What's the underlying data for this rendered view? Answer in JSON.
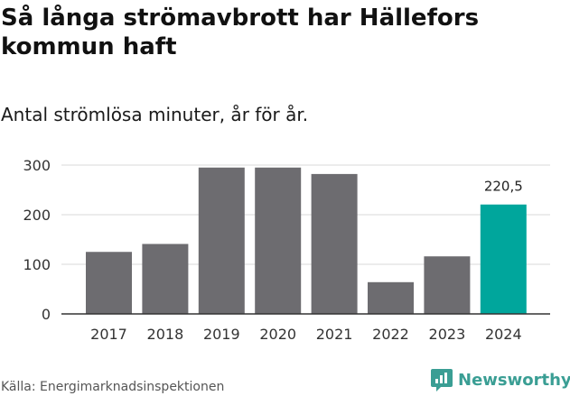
{
  "title": "Så långa strömavbrott har Hällefors kommun haft",
  "subtitle": "Antal strömlösa minuter, år för år.",
  "source": "Källa: Energimarknadsinspektionen",
  "brand": "Newsworthy",
  "colors": {
    "bar": "#6d6c70",
    "highlight": "#00a69c",
    "grid": "#d9d9d9",
    "axis": "#333333",
    "brand": "#3a9e94"
  },
  "chart_data": {
    "type": "bar",
    "categories": [
      "2017",
      "2018",
      "2019",
      "2020",
      "2021",
      "2022",
      "2023",
      "2024"
    ],
    "values": [
      125,
      141,
      295,
      295,
      282,
      64,
      116,
      220.5
    ],
    "highlight_index": 7,
    "data_labels": [
      {
        "index": 7,
        "text": "220,5"
      }
    ],
    "yticks": [
      0,
      100,
      200,
      300
    ],
    "ylim": [
      0,
      300
    ],
    "grid": true,
    "xlabel": "",
    "ylabel": ""
  }
}
